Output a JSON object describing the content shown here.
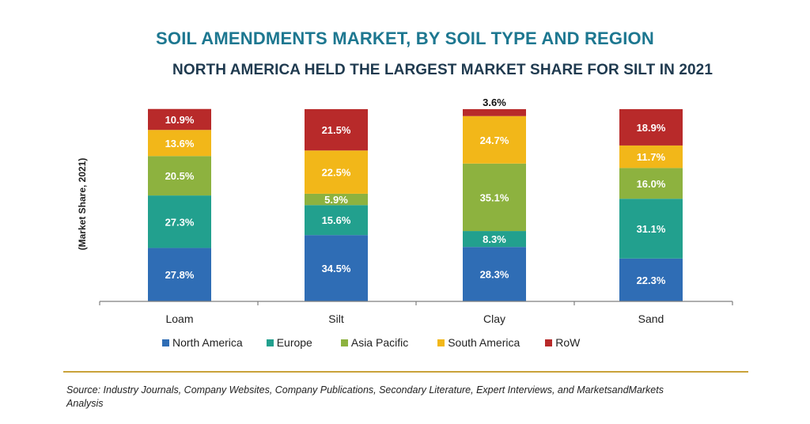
{
  "title": "SOIL AMENDMENTS MARKET, BY SOIL TYPE AND REGION",
  "subtitle": "NORTH AMERICA HELD THE LARGEST MARKET SHARE FOR SILT IN 2021",
  "source": "Source: Industry Journals, Company Websites, Company Publications, Secondary Literature, Expert Interviews, and MarketsandMarkets Analysis",
  "colors": {
    "North America": "#2f6db5",
    "Europe": "#22a08e",
    "Asia Pacific": "#8db23f",
    "South America": "#f2b719",
    "RoW": "#b82a2a",
    "rule": "#c9a23a"
  },
  "chart_data": {
    "type": "bar",
    "stacked": true,
    "categories": [
      "Loam",
      "Silt",
      "Clay",
      "Sand"
    ],
    "ylabel": "(Market Share, 2021)",
    "ylim": [
      0,
      100
    ],
    "grid": false,
    "legend_position": "bottom",
    "series": [
      {
        "name": "North America",
        "values": [
          27.8,
          34.5,
          28.3,
          22.3
        ],
        "labels": [
          "27.8%",
          "34.5%",
          "28.3%",
          "22.3%"
        ]
      },
      {
        "name": "Europe",
        "values": [
          27.3,
          15.6,
          8.3,
          31.1
        ],
        "labels": [
          "27.3%",
          "15.6%",
          "8.3%",
          "31.1%"
        ]
      },
      {
        "name": "Asia Pacific",
        "values": [
          20.5,
          5.9,
          35.1,
          16.0
        ],
        "labels": [
          "20.5%",
          "5.9%",
          "35.1%",
          "16.0%"
        ]
      },
      {
        "name": "South America",
        "values": [
          13.6,
          22.5,
          24.7,
          11.7
        ],
        "labels": [
          "13.6%",
          "22.5%",
          "24.7%",
          "11.7%"
        ]
      },
      {
        "name": "RoW",
        "values": [
          10.9,
          21.5,
          3.6,
          18.9
        ],
        "labels": [
          "10.9%",
          "21.5%",
          "3.6%",
          "18.9%"
        ]
      }
    ]
  }
}
